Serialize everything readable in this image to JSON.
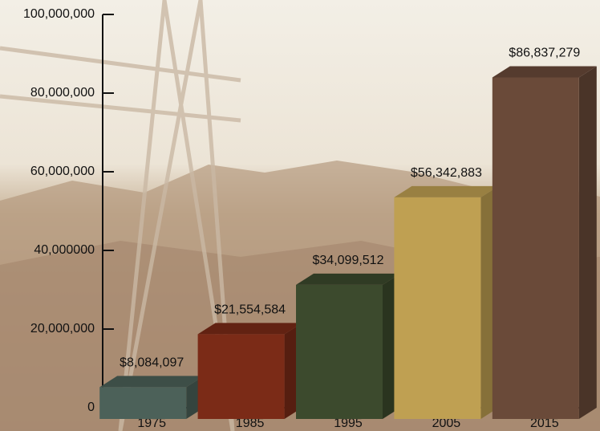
{
  "chart_data": {
    "type": "bar3d",
    "categories": [
      "1975",
      "1985",
      "1995",
      "2005",
      "2015"
    ],
    "values": [
      8084097,
      21554584,
      34099512,
      56342883,
      86837279
    ],
    "value_labels": [
      "$8,084,097",
      "$21,554,584",
      "$34,099,512",
      "$56,342,883",
      "$86,837,279"
    ],
    "colors": [
      "#4c6159",
      "#7b2b17",
      "#3c4a2d",
      "#bfa052",
      "#6a4a39"
    ],
    "ylim": [
      0,
      100000000
    ],
    "yticks": [
      0,
      {
        "value": 20000000,
        "label": "20,000,000"
      },
      {
        "value": 40000000,
        "label": "40,000000"
      },
      {
        "value": 60000000,
        "label": "60,000,000"
      },
      {
        "value": 80000000,
        "label": "80,000,000"
      },
      {
        "value": 100000000,
        "label": "100,000,000"
      }
    ]
  }
}
